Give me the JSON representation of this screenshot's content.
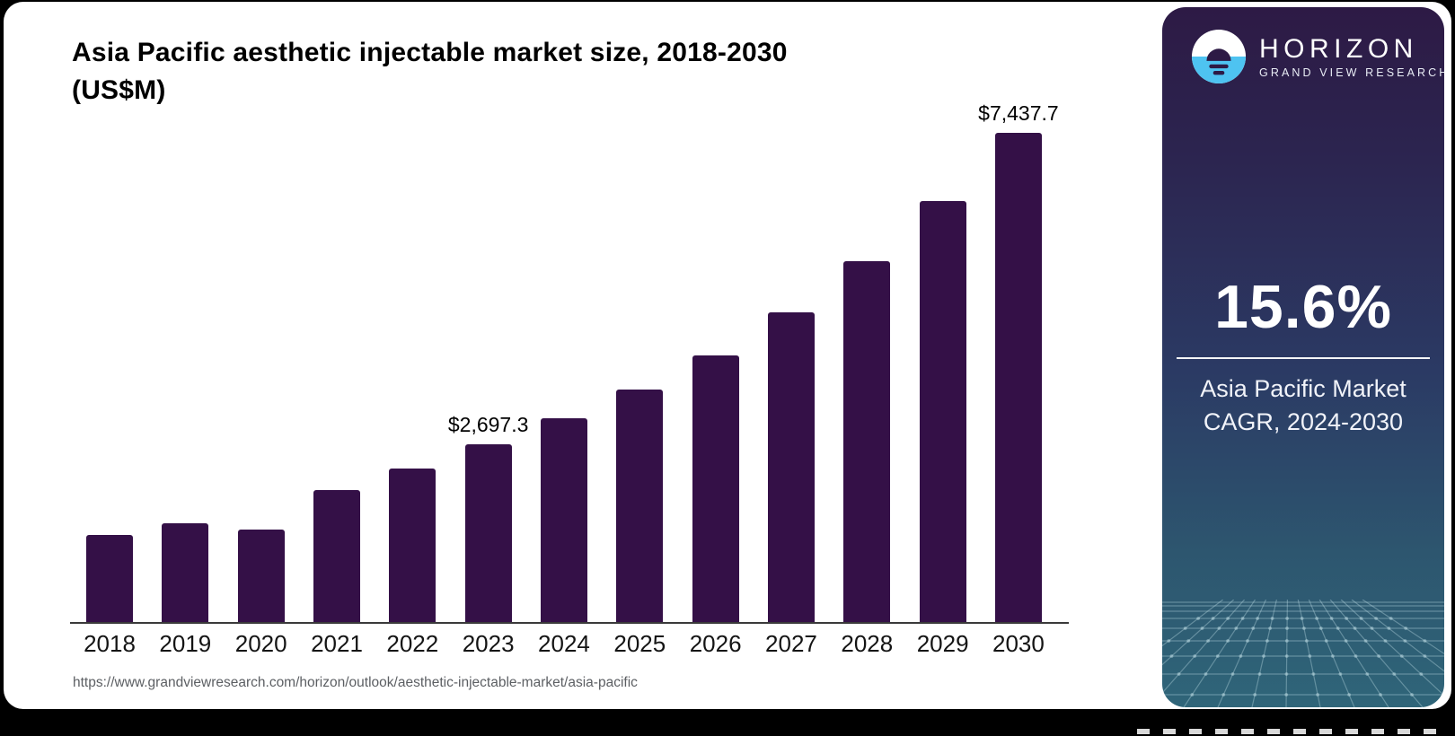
{
  "chart_data": {
    "type": "bar",
    "title": "Asia Pacific aesthetic injectable market size, 2018-2030 (US$M)",
    "title_line1": "Asia Pacific aesthetic injectable market size, 2018-2030",
    "title_line2": "(US$M)",
    "units": "US$M",
    "categories": [
      "2018",
      "2019",
      "2020",
      "2021",
      "2022",
      "2023",
      "2024",
      "2025",
      "2026",
      "2027",
      "2028",
      "2029",
      "2030"
    ],
    "values": [
      1330,
      1500,
      1410,
      2000,
      2340,
      2697.3,
      3100,
      3530,
      4060,
      4715,
      5485,
      6400,
      7437.7
    ],
    "value_labels": [
      "",
      "",
      "",
      "",
      "",
      "$2,697.3",
      "",
      "",
      "",
      "",
      "",
      "",
      "$7,437.7"
    ],
    "ylim": [
      0,
      7437.7
    ],
    "grid": "off",
    "legend": "none",
    "bar_color": "#341047",
    "axis_color": "#3a3a3a"
  },
  "source": {
    "url": "https://www.grandviewresearch.com/horizon/outlook/aesthetic-injectable-market/asia-pacific"
  },
  "sidebar": {
    "brand": "HORIZON",
    "brand_sub": "GRAND VIEW RESEARCH",
    "stat_value": "15.6%",
    "stat_caption_line1": "Asia Pacific Market",
    "stat_caption_line2": "CAGR, 2024-2030",
    "colors": {
      "logo_circle_top": "#ffffff",
      "logo_circle_bottom": "#4ec3f1",
      "logo_glyph": "#2d1a45",
      "panel_top": "#2d1a45",
      "panel_middle": "#2b3a64",
      "panel_bottom": "#2f6579"
    }
  }
}
